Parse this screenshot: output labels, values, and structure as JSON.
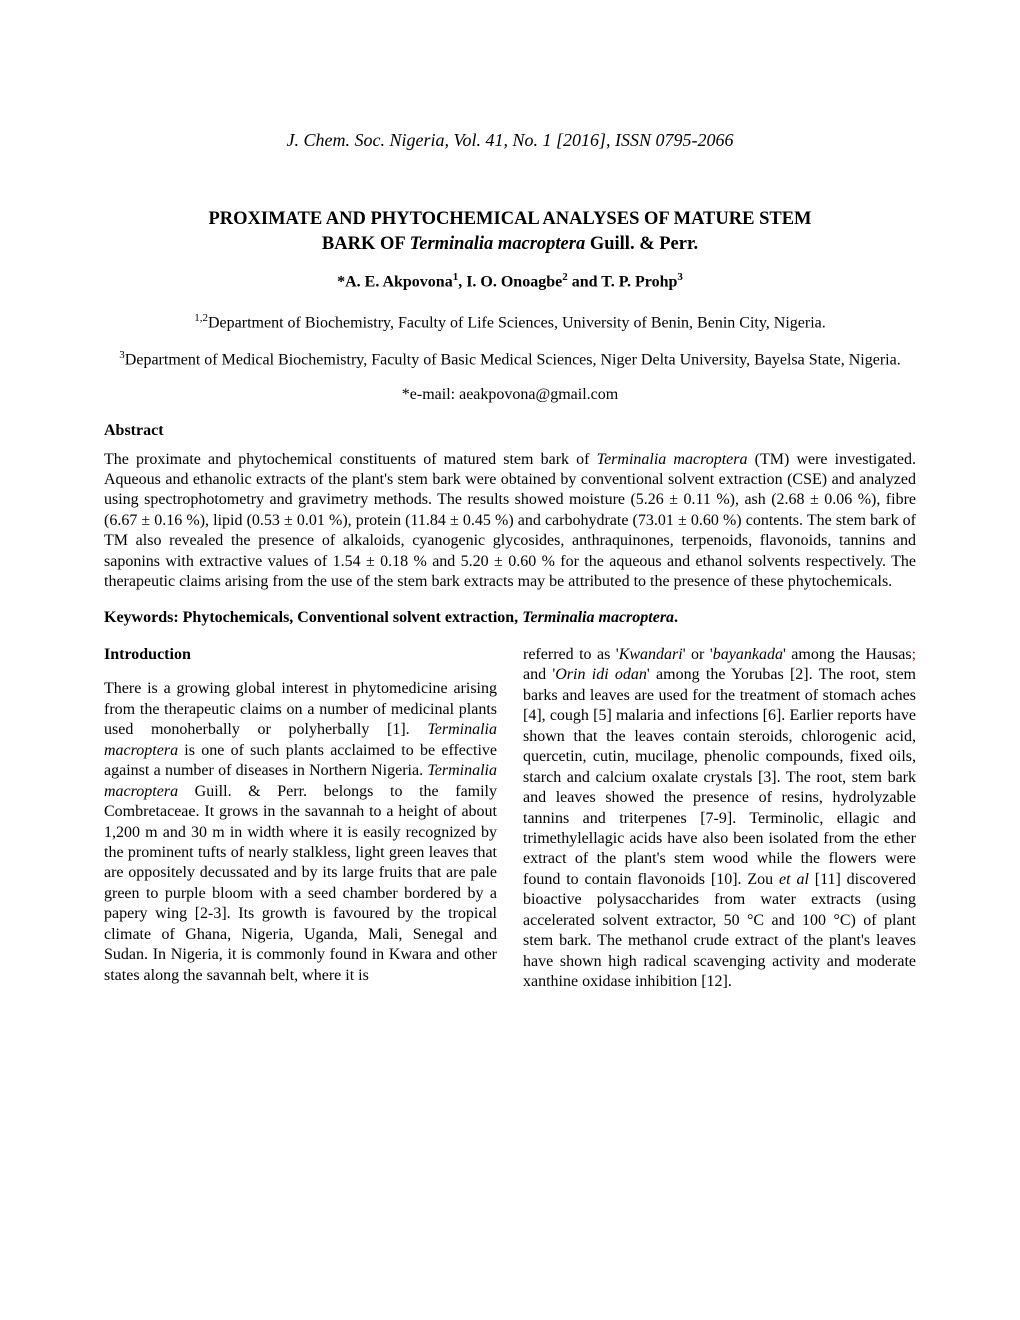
{
  "journal_header": "J. Chem. Soc. Nigeria, Vol. 41, No. 1 [2016], ISSN 0795-2066",
  "title_line1": "PROXIMATE AND PHYTOCHEMICAL ANALYSES   OF   MATURE STEM",
  "title_line2_pre": "BARK  OF ",
  "title_species": "Terminalia  macroptera",
  "title_line2_post": "  Guill. & Perr.",
  "authors_html": "*A.  E.   Akpovona<sup>1</sup>,   I. O.  Onoagbe<sup>2</sup> and T. P.  Prohp<sup>3</sup>",
  "affiliation1_html": "<sup>1,2</sup>Department of Biochemistry, Faculty of Life Sciences, University of Benin, Benin City, Nigeria.",
  "affiliation2_html": "<sup>3</sup>Department of Medical Biochemistry, Faculty of Basic Medical Sciences, Niger Delta University, Bayelsa State, Nigeria.",
  "email": "*e-mail: aeakpovona@gmail.com",
  "abstract_heading": "Abstract",
  "abstract_html": "The proximate and phytochemical constituents of matured stem bark of <span class=\"species\">Terminalia macroptera</span> (TM) were investigated. Aqueous and ethanolic extracts of the plant's stem bark were obtained by conventional solvent extraction (CSE) and analyzed using spectrophotometry and gravimetry methods. The results showed moisture (5.26 ± 0.11 %), ash (2.68 ± 0.06 %), fibre (6.67 ± 0.16 %), lipid (0.53 ± 0.01 %), protein (11.84 ± 0.45 %) and carbohydrate (73.01 ± 0.60 %) contents. The stem bark of TM also revealed the presence of alkaloids, cyanogenic glycosides, anthraquinones, terpenoids, flavonoids, tannins and saponins with extractive values of 1.54 ± 0.18 % and 5.20 ± 0.60 % for the aqueous and ethanol solvents respectively. The therapeutic claims arising from the use of the stem bark extracts may be attributed to the presence of these phytochemicals.",
  "keywords_html": "Keywords: Phytochemicals, Conventional solvent extraction, <span class=\"species\">Terminalia macroptera</span>.",
  "introduction_heading": "Introduction",
  "col1_html": "There is a growing global interest in phytomedicine arising from the therapeutic claims on a number of medicinal plants used monoherbally or polyherbally [1]. <span class=\"species\">Terminalia macroptera</span> is one of such plants acclaimed to be effective against a number of diseases in Northern Nigeria. <span class=\"species\">Terminalia macroptera</span> Guill. & Perr. belongs to the family Combretaceae. It grows in the savannah to a height of about 1,200 m and 30 m in width where it is easily recognized by the prominent tufts of nearly stalkless, light green leaves that are oppositely decussated and by its large fruits that are pale green to purple bloom with a seed chamber bordered by a papery wing [2-3]. Its growth is favoured by the tropical climate of Ghana, Nigeria, Uganda, Mali, Senegal and Sudan. In Nigeria, it is commonly found in Kwara and other states along the savannah belt, where it is",
  "col2_html": "referred to as '<span class=\"species\">Kwandari</span>' or '<span class=\"species\">bayankada</span>' among the Hausas<span class=\"red\">;</span> and '<span class=\"species\">Orin idi odan</span>' among the Yorubas [2].  The root, stem barks and leaves are used for the treatment of stomach aches [4], cough [5] malaria and infections [6]. Earlier reports have shown that the leaves contain steroids, chlorogenic acid, quercetin, cutin, mucilage, phenolic compounds, fixed oils, starch and calcium oxalate crystals [3]. The root, stem bark and leaves showed the presence of resins, hydrolyzable tannins and triterpenes [7-9]. Terminolic, ellagic and trimethylellagic acids have also been isolated from the ether extract of the plant's stem wood while the flowers were found to contain flavonoids [10]. Zou <span class=\"species\">et al</span> [11] discovered bioactive polysaccharides from water extracts (using accelerated solvent extractor, 50 °C and 100 °C) of plant stem bark. The methanol crude extract of the plant's leaves have shown high radical scavenging activity and moderate xanthine oxidase inhibition [12]."
}
